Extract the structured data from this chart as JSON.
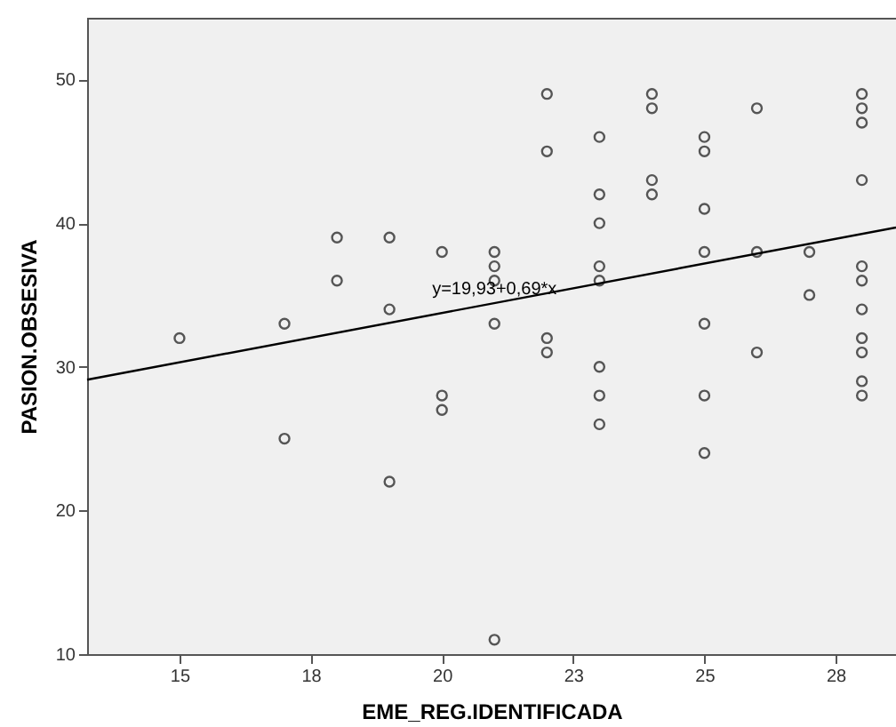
{
  "chart_data": {
    "type": "scatter",
    "xlabel": "EME_REG.IDENTIFICADA",
    "ylabel": "PASION.OBSESIVA",
    "xlim": [
      13.24,
      28.65
    ],
    "xticks": [
      {
        "value": 15,
        "label": "15"
      },
      {
        "value": 17.5,
        "label": "18"
      },
      {
        "value": 20,
        "label": "20"
      },
      {
        "value": 22.5,
        "label": "23"
      },
      {
        "value": 25,
        "label": "25"
      },
      {
        "value": 27.5,
        "label": "28"
      }
    ],
    "ylim": [
      10,
      54.3
    ],
    "yticks": [
      10,
      20,
      30,
      40,
      50
    ],
    "grid": false,
    "marker": "circle",
    "series": [
      {
        "color": "#555555",
        "x": [
          15,
          17,
          17,
          18,
          18,
          19,
          19,
          19,
          20,
          20,
          20,
          21,
          21,
          21,
          21,
          21,
          22,
          22,
          22,
          22,
          23,
          23,
          23,
          23,
          23,
          23,
          23,
          23,
          24,
          24,
          24,
          24,
          25,
          25,
          25,
          25,
          25,
          25,
          25,
          26,
          26,
          26,
          27,
          27,
          28,
          28,
          28,
          28,
          28,
          28,
          28,
          28,
          28,
          28,
          28
        ],
        "values": [
          32,
          33,
          25,
          39,
          36,
          39,
          34,
          22,
          38,
          28,
          27,
          38,
          37,
          36,
          33,
          11,
          49,
          45,
          32,
          31,
          46,
          42,
          40,
          37,
          36,
          30,
          28,
          26,
          49,
          48,
          43,
          42,
          46,
          45,
          41,
          38,
          33,
          28,
          24,
          48,
          38,
          31,
          38,
          35,
          49,
          48,
          47,
          43,
          37,
          36,
          34,
          32,
          31,
          29,
          28
        ]
      },
      {
        "type": "line",
        "color": "#000000",
        "marker": "none",
        "x": [
          13.24,
          28.65
        ],
        "values": [
          29.1,
          39.7
        ]
      }
    ],
    "annotations": [
      {
        "text": "y=19,93+0,69*x",
        "x": 21,
        "y": 34.3
      }
    ]
  }
}
